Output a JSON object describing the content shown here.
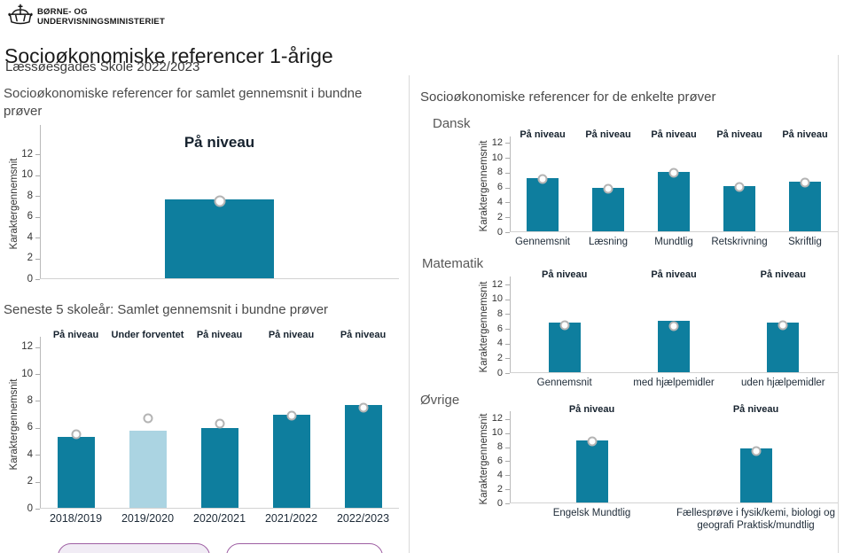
{
  "brand": {
    "line1": "BØRNE- OG",
    "line2": "UNDERVISNINGSMINISTERIET"
  },
  "page": {
    "title": "Socioøkonomiske referencer 1-årige",
    "subtitle": "Læssøesgades Skole 2022/2023"
  },
  "right": {
    "title": "Socioøkonomiske referencer for de enkelte prøver"
  },
  "colors": {
    "bar_teal": "#0e7e9e",
    "bar_muted_blue": "#abd4e2",
    "marker_fill": "#ffffff",
    "marker_border": "#b4b4b4",
    "button_border_purple": "#9e5fa3"
  },
  "chart_data": [
    {
      "id": "samlet",
      "type": "bar",
      "title": "Socioøkonomiske referencer for samlet gennemsnit i bundne prøver",
      "ylabel": "Karaktergennemsnit",
      "ylim": [
        0,
        12
      ],
      "yticks": [
        0,
        2,
        4,
        6,
        8,
        10,
        12
      ],
      "categories": [
        ""
      ],
      "bar_values": [
        7.7
      ],
      "point_values": [
        7.5
      ],
      "status_labels": [
        "På niveau"
      ],
      "muted_bars": []
    },
    {
      "id": "seneste5",
      "type": "bar",
      "title": "Seneste 5 skoleår: Samlet gennemsnit i bundne prøver",
      "ylabel": "Karaktergennemsnit",
      "ylim": [
        0,
        12
      ],
      "yticks": [
        0,
        2,
        4,
        6,
        8,
        10,
        12
      ],
      "categories": [
        "2018/2019",
        "2019/2020",
        "2020/2021",
        "2021/2022",
        "2022/2023"
      ],
      "bar_values": [
        5.3,
        5.8,
        6.0,
        7.0,
        7.7
      ],
      "point_values": [
        5.5,
        6.7,
        6.3,
        6.9,
        7.5
      ],
      "status_labels": [
        "På niveau",
        "Under forventet",
        "På niveau",
        "På niveau",
        "På niveau"
      ],
      "muted_bars": [
        1
      ]
    },
    {
      "id": "dansk",
      "type": "bar",
      "title": "Dansk",
      "ylabel": "Karaktergennemsnit",
      "ylim": [
        0,
        12
      ],
      "yticks": [
        0,
        2,
        4,
        6,
        8,
        10,
        12
      ],
      "categories": [
        "Gennemsnit",
        "Læsning",
        "Mundtlig",
        "Retskrivning",
        "Skriftlig"
      ],
      "bar_values": [
        7.3,
        6.0,
        8.1,
        6.2,
        6.8
      ],
      "point_values": [
        7.1,
        5.9,
        8.0,
        6.1,
        6.7
      ],
      "status_labels": [
        "På niveau",
        "På niveau",
        "På niveau",
        "På niveau",
        "På niveau"
      ],
      "muted_bars": []
    },
    {
      "id": "matematik",
      "type": "bar",
      "title": "Matematik",
      "ylabel": "Karaktergennemsnit",
      "ylim": [
        0,
        12
      ],
      "yticks": [
        0,
        2,
        4,
        6,
        8,
        10,
        12
      ],
      "categories": [
        "Gennemsnit",
        "med hjælpemidler",
        "uden hjælpemidler"
      ],
      "bar_values": [
        6.9,
        7.1,
        6.9
      ],
      "point_values": [
        6.5,
        6.4,
        6.5
      ],
      "status_labels": [
        "På niveau",
        "På niveau",
        "På niveau"
      ],
      "muted_bars": []
    },
    {
      "id": "oevrige",
      "type": "bar",
      "title": "Øvrige",
      "ylabel": "Karaktergennemsnit",
      "ylim": [
        0,
        12
      ],
      "yticks": [
        0,
        2,
        4,
        6,
        8,
        10,
        12
      ],
      "categories": [
        "Engelsk Mundtlig",
        "Fællesprøve i fysik/kemi, biologi og geografi Praktisk/mundtlig"
      ],
      "bar_values": [
        8.9,
        7.8
      ],
      "point_values": [
        8.8,
        7.4
      ],
      "status_labels": [
        "På niveau",
        "På niveau"
      ],
      "muted_bars": []
    }
  ]
}
